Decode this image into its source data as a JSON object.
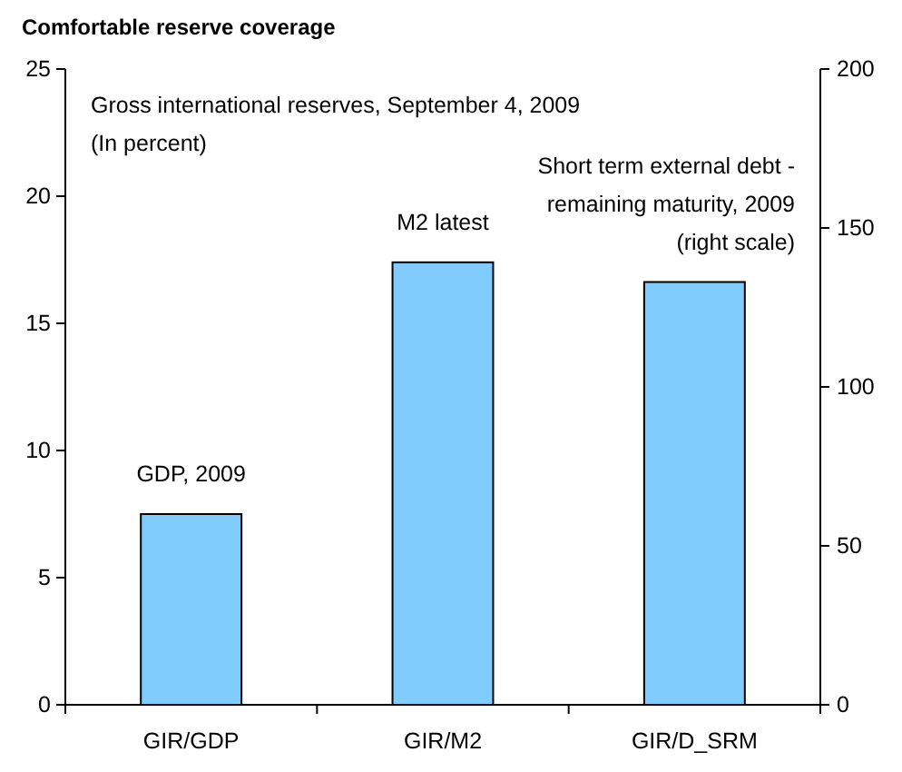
{
  "chart_data": {
    "type": "bar",
    "title": "Comfortable reserve coverage",
    "categories": [
      "GIR/GDP",
      "GIR/M2",
      "GIR/D_SRM"
    ],
    "series": [
      {
        "color": "#80ccff",
        "values": [
          7.5,
          17.4,
          null
        ]
      },
      {
        "color": "#80ccff",
        "values": [
          null,
          null,
          133
        ],
        "axis": "y2"
      }
    ],
    "ylim": [
      0,
      25
    ],
    "yticks": [
      0,
      5,
      10,
      15,
      20,
      25
    ],
    "y2lim": [
      0,
      200
    ],
    "y2ticks": [
      0,
      50,
      100,
      150,
      200
    ],
    "grid": false,
    "annotations": [
      "Gross international reserves, September 4, 2009\n(In percent)",
      "GDP, 2009",
      "M2 latest",
      "Short term external debt -\nremaining maturity, 2009\n(right scale)"
    ]
  }
}
